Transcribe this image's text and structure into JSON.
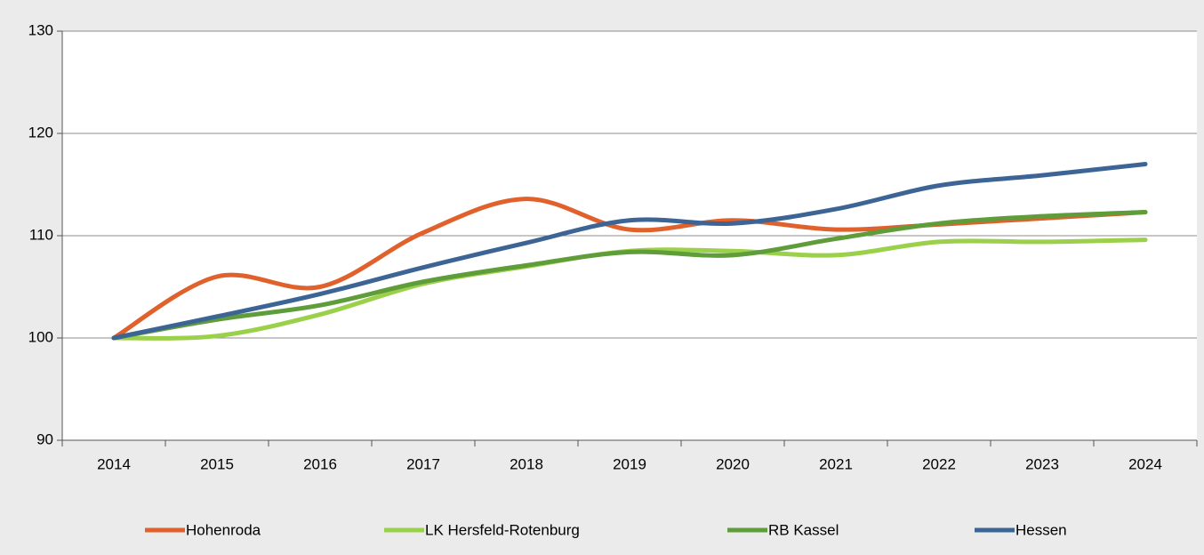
{
  "chart_data": {
    "type": "line",
    "categories": [
      "2014",
      "2015",
      "2016",
      "2017",
      "2018",
      "2019",
      "2020",
      "2021",
      "2022",
      "2023",
      "2024"
    ],
    "series": [
      {
        "name": "Hohenroda",
        "color": "#e0612b",
        "values": [
          100,
          106.0,
          105.0,
          110.3,
          113.6,
          110.6,
          111.5,
          110.6,
          111.1,
          111.7,
          112.3
        ]
      },
      {
        "name": "LK Hersfeld-Rotenburg",
        "color": "#9bd04a",
        "values": [
          100,
          100.2,
          102.3,
          105.3,
          107.0,
          108.5,
          108.5,
          108.1,
          109.4,
          109.4,
          109.6
        ]
      },
      {
        "name": "RB Kassel",
        "color": "#5f9c3a",
        "values": [
          100,
          101.8,
          103.2,
          105.5,
          107.1,
          108.4,
          108.1,
          109.7,
          111.2,
          111.9,
          112.3
        ]
      },
      {
        "name": "Hessen",
        "color": "#3c6596",
        "values": [
          100,
          102.1,
          104.3,
          106.9,
          109.3,
          111.5,
          111.2,
          112.6,
          114.9,
          115.9,
          117.0
        ]
      }
    ],
    "ylim": [
      90,
      130
    ],
    "yticks": [
      90,
      100,
      110,
      120,
      130
    ],
    "grid": true,
    "legend": "bottom"
  }
}
